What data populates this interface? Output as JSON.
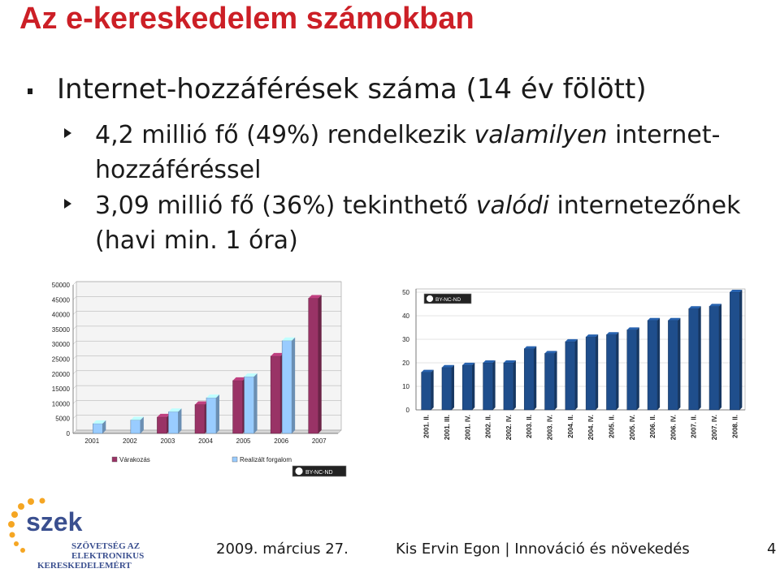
{
  "slide": {
    "title": "Az e-kereskedelem számokban",
    "bullet1": "Internet-hozzáférések száma (14 év fölött)",
    "sub1_part1": "4,2 millió fő (49%) rendelkezik ",
    "sub1_italic": "valamilyen",
    "sub1_part2": " internet-hozzáféréssel",
    "sub2_part1": "3,09 millió fő (36%) tekinthető ",
    "sub2_italic": "valódi",
    "sub2_part2": " internetezőnek (havi min. 1 óra)"
  },
  "footer": {
    "date": "2009. március 27.",
    "author": "Kis Ervin Egon | Innováció és növekedés",
    "page": "4"
  },
  "logo": {
    "text": "szek",
    "line1": "SZÖVETSÉG AZ",
    "line2": "ELEKTRONIKUS",
    "line3": "KERESKEDELEMÉRT"
  },
  "license_badge": "BY-NC-ND",
  "chart_data": [
    {
      "type": "bar",
      "categories": [
        "2001",
        "2002",
        "2003",
        "2004",
        "2005",
        "2006",
        "2007"
      ],
      "series": [
        {
          "name": "Várakozás",
          "values": [
            null,
            null,
            5500,
            9700,
            17800,
            26000,
            45500
          ],
          "color": "#993366"
        },
        {
          "name": "Realizált forgalom",
          "values": [
            3300,
            4500,
            7300,
            12000,
            19100,
            31200,
            null
          ],
          "color": "#99ccff"
        }
      ],
      "yticks": [
        "0",
        "5000",
        "10000",
        "15000",
        "20000",
        "25000",
        "30000",
        "35000",
        "40000",
        "45000",
        "50000"
      ],
      "ylim": [
        0,
        50000
      ],
      "grid": true,
      "legend": "bottom"
    },
    {
      "type": "bar",
      "categories": [
        "2001. II.",
        "2001. III.",
        "2001. IV.",
        "2002. II.",
        "2002. IV.",
        "2003. II.",
        "2003. IV.",
        "2004. II.",
        "2004. IV.",
        "2005. II.",
        "2005. IV.",
        "2006. II.",
        "2006. IV.",
        "2007. II.",
        "2007. IV.",
        "2008. II."
      ],
      "values": [
        16,
        18,
        19,
        20,
        20,
        26,
        24,
        29,
        31,
        32,
        34,
        38,
        38,
        43,
        44,
        50
      ],
      "yticks": [
        "0",
        "10",
        "20",
        "30",
        "40",
        "50"
      ],
      "ylim": [
        0,
        50
      ],
      "color": "#1f4e8c",
      "grid": true
    }
  ]
}
